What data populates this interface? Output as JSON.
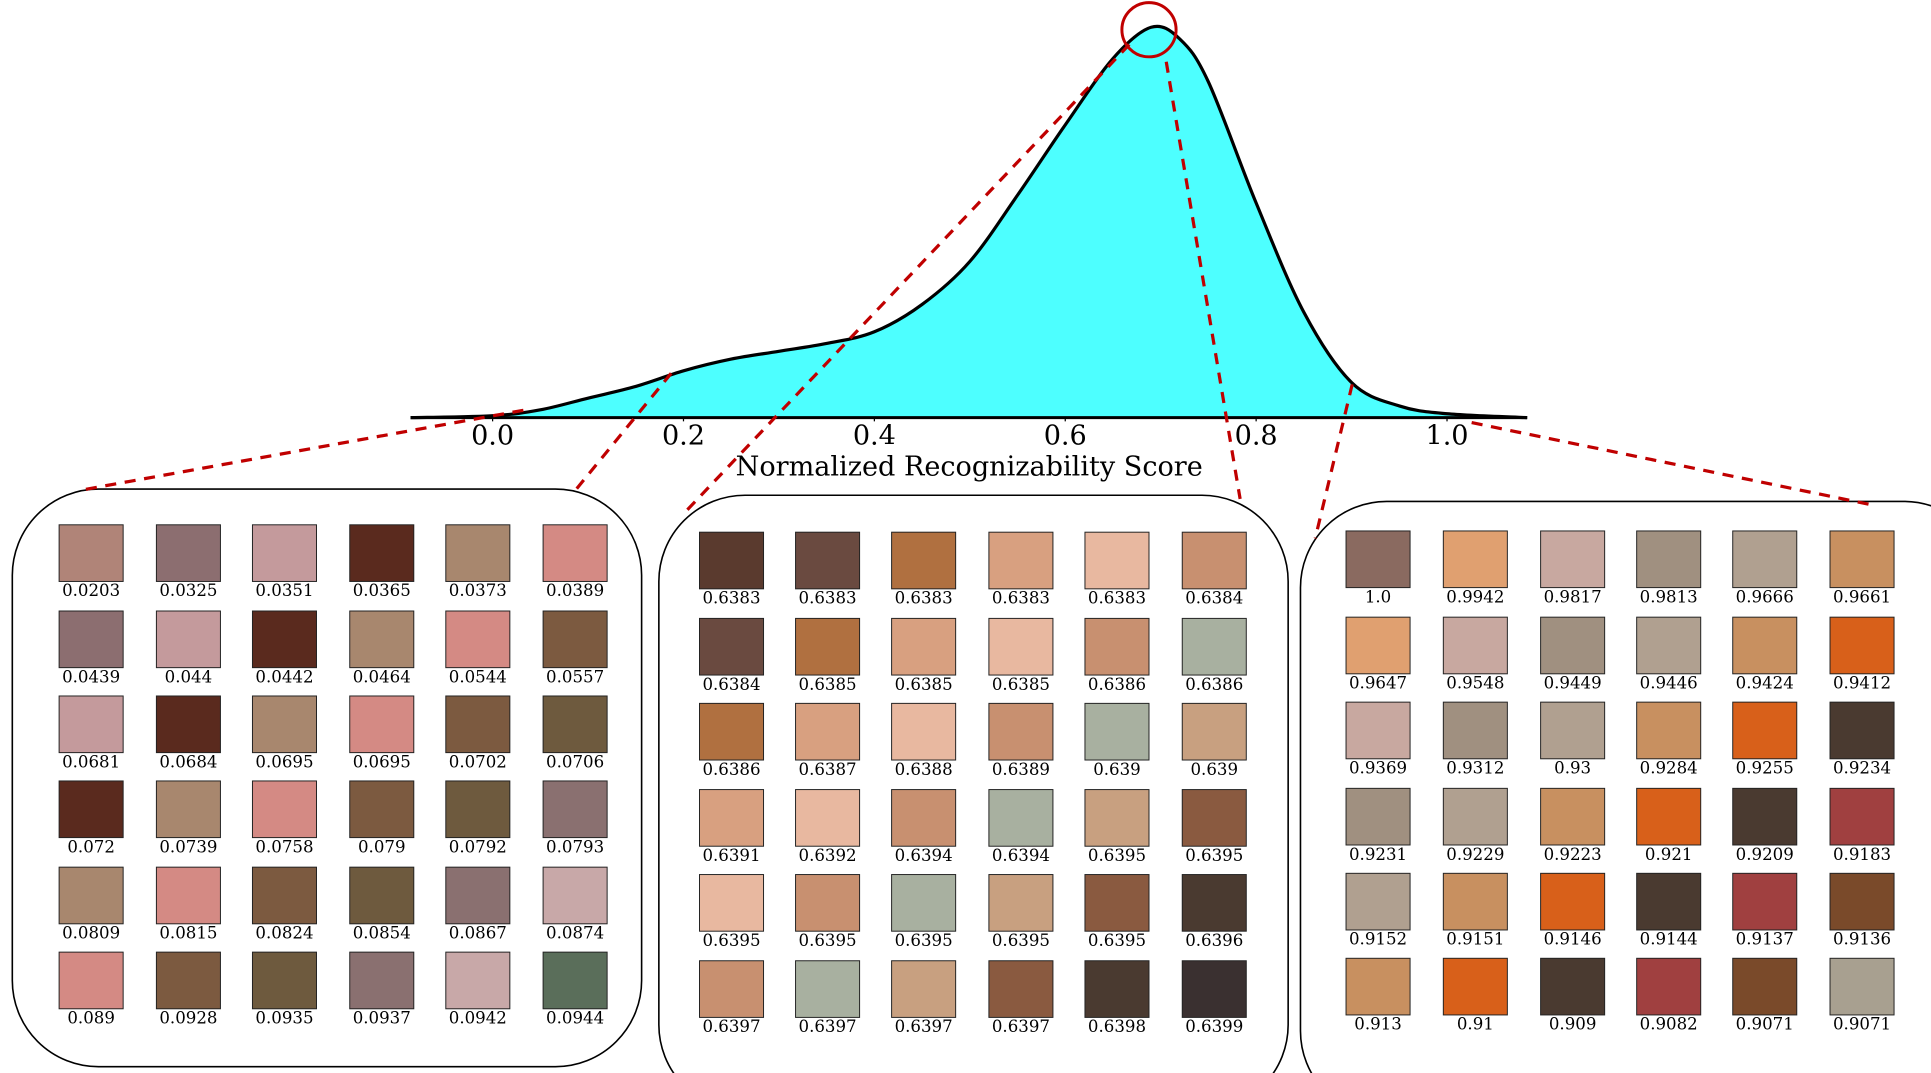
{
  "chart_data": {
    "type": "area",
    "xlabel": "Normalized Recognizability Score",
    "color": "#4dffff",
    "xlim": [
      -0.086,
      1.084
    ],
    "xticks": [
      {
        "value": 0,
        "label": "0.0"
      },
      0.2,
      0.4,
      0.6,
      0.8,
      {
        "value": 1,
        "label": "1.0"
      }
    ],
    "x": [
      -0.086,
      0.0,
      0.05,
      0.1,
      0.15,
      0.2,
      0.25,
      0.3,
      0.35,
      0.4,
      0.45,
      0.5,
      0.55,
      0.6,
      0.65,
      0.69,
      0.72,
      0.75,
      0.8,
      0.85,
      0.9,
      0.95,
      1.0,
      1.084
    ],
    "values": [
      0,
      0.005,
      0.02,
      0.05,
      0.08,
      0.12,
      0.15,
      0.17,
      0.19,
      0.22,
      0.29,
      0.4,
      0.57,
      0.75,
      0.92,
      1.0,
      0.97,
      0.86,
      0.55,
      0.27,
      0.09,
      0.03,
      0.01,
      0
    ]
  },
  "panels": [
    {
      "scores": [
        "0.0203",
        "0.0325",
        "0.0351",
        "0.0365",
        "0.0373",
        "0.0389",
        "0.0439",
        "0.044",
        "0.0442",
        "0.0464",
        "0.0544",
        "0.0557",
        "0.0681",
        "0.0684",
        "0.0695",
        "0.0695",
        "0.0702",
        "0.0706",
        "0.072",
        "0.0739",
        "0.0758",
        "0.079",
        "0.0792",
        "0.0793",
        "0.0809",
        "0.0815",
        "0.0824",
        "0.0854",
        "0.0867",
        "0.0874",
        "0.089",
        "0.0928",
        "0.0935",
        "0.0937",
        "0.0942",
        "0.0944"
      ]
    },
    {
      "scores": [
        "0.6383",
        "0.6383",
        "0.6383",
        "0.6383",
        "0.6383",
        "0.6384",
        "0.6384",
        "0.6385",
        "0.6385",
        "0.6385",
        "0.6386",
        "0.6386",
        "0.6386",
        "0.6387",
        "0.6388",
        "0.6389",
        "0.639",
        "0.639",
        "0.6391",
        "0.6392",
        "0.6394",
        "0.6394",
        "0.6395",
        "0.6395",
        "0.6395",
        "0.6395",
        "0.6395",
        "0.6395",
        "0.6395",
        "0.6396",
        "0.6397",
        "0.6397",
        "0.6397",
        "0.6397",
        "0.6398",
        "0.6399"
      ]
    },
    {
      "scores": [
        "1.0",
        "0.9942",
        "0.9817",
        "0.9813",
        "0.9666",
        "0.9661",
        "0.9647",
        "0.9548",
        "0.9449",
        "0.9446",
        "0.9424",
        "0.9412",
        "0.9369",
        "0.9312",
        "0.93",
        "0.9284",
        "0.9255",
        "0.9234",
        "0.9231",
        "0.9229",
        "0.9223",
        "0.921",
        "0.9209",
        "0.9183",
        "0.9152",
        "0.9151",
        "0.9146",
        "0.9144",
        "0.9137",
        "0.9136",
        "0.913",
        "0.91",
        "0.909",
        "0.9082",
        "0.9071",
        "0.9071"
      ]
    }
  ]
}
